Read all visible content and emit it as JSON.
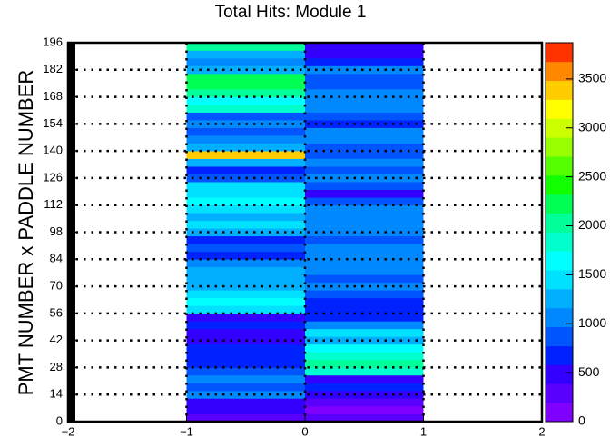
{
  "chart_data": {
    "type": "heatmap",
    "title": "Total Hits: Module 1",
    "y_label": "PMT NUMBER x PADDLE NUMBER",
    "xlim": [
      -2,
      2
    ],
    "xticks": [
      {
        "value": -2,
        "label": "−2"
      },
      {
        "value": -1,
        "label": "−1"
      },
      0,
      1,
      2
    ],
    "ylim": [
      0,
      196
    ],
    "yticks": [
      0,
      14,
      28,
      42,
      56,
      70,
      84,
      98,
      112,
      126,
      140,
      154,
      168,
      182,
      196
    ],
    "grid": true,
    "xbins": [
      -1,
      0,
      1
    ],
    "ybins": [
      0,
      4,
      8,
      12,
      16,
      20,
      24,
      28,
      32,
      36,
      40,
      44,
      48,
      52,
      56,
      60,
      64,
      68,
      72,
      76,
      80,
      84,
      88,
      92,
      96,
      100,
      104,
      108,
      112,
      116,
      120,
      124,
      128,
      132,
      136,
      140,
      144,
      148,
      152,
      156,
      160,
      164,
      168,
      172,
      176,
      180,
      184,
      188,
      192,
      196
    ],
    "z": [
      [
        300,
        400,
        500,
        1000,
        900,
        1000,
        900,
        600,
        700,
        600,
        500,
        400,
        600,
        500,
        1500,
        1700,
        1400,
        1300,
        1200,
        1300,
        1100,
        700,
        800,
        700,
        1300,
        1400,
        1300,
        1400,
        1600,
        1500,
        1400,
        800,
        700,
        1300,
        3300,
        1200,
        1000,
        900,
        1100,
        800,
        1800,
        1600,
        2000,
        2200,
        2300,
        1200,
        1000,
        1300,
        2000
      ],
      [
        200,
        150,
        200,
        500,
        600,
        400,
        1800,
        2000,
        1900,
        1700,
        1200,
        1400,
        1100,
        600,
        700,
        700,
        900,
        1000,
        900,
        1000,
        1000,
        1100,
        1000,
        900,
        1000,
        1000,
        1100,
        1000,
        950,
        400,
        900,
        1000,
        900,
        1000,
        900,
        800,
        1000,
        1100,
        700,
        900,
        1000,
        1100,
        1000,
        900,
        800,
        1000,
        600,
        500,
        400
      ]
    ],
    "zlim": [
      0,
      3870
    ],
    "zticks": [
      0,
      500,
      1000,
      1500,
      2000,
      2500,
      3000,
      3500
    ],
    "colors": [
      "#8000ff",
      "#5a00ff",
      "#3300ff",
      "#0022ff",
      "#0055ff",
      "#0088ff",
      "#00b0ff",
      "#00e0ff",
      "#00ffff",
      "#00ffcc",
      "#00ff99",
      "#00ff55",
      "#11ff00",
      "#55ff00",
      "#99ff00",
      "#ccff00",
      "#ffff00",
      "#ffcc00",
      "#ff8800",
      "#ff3300"
    ]
  }
}
